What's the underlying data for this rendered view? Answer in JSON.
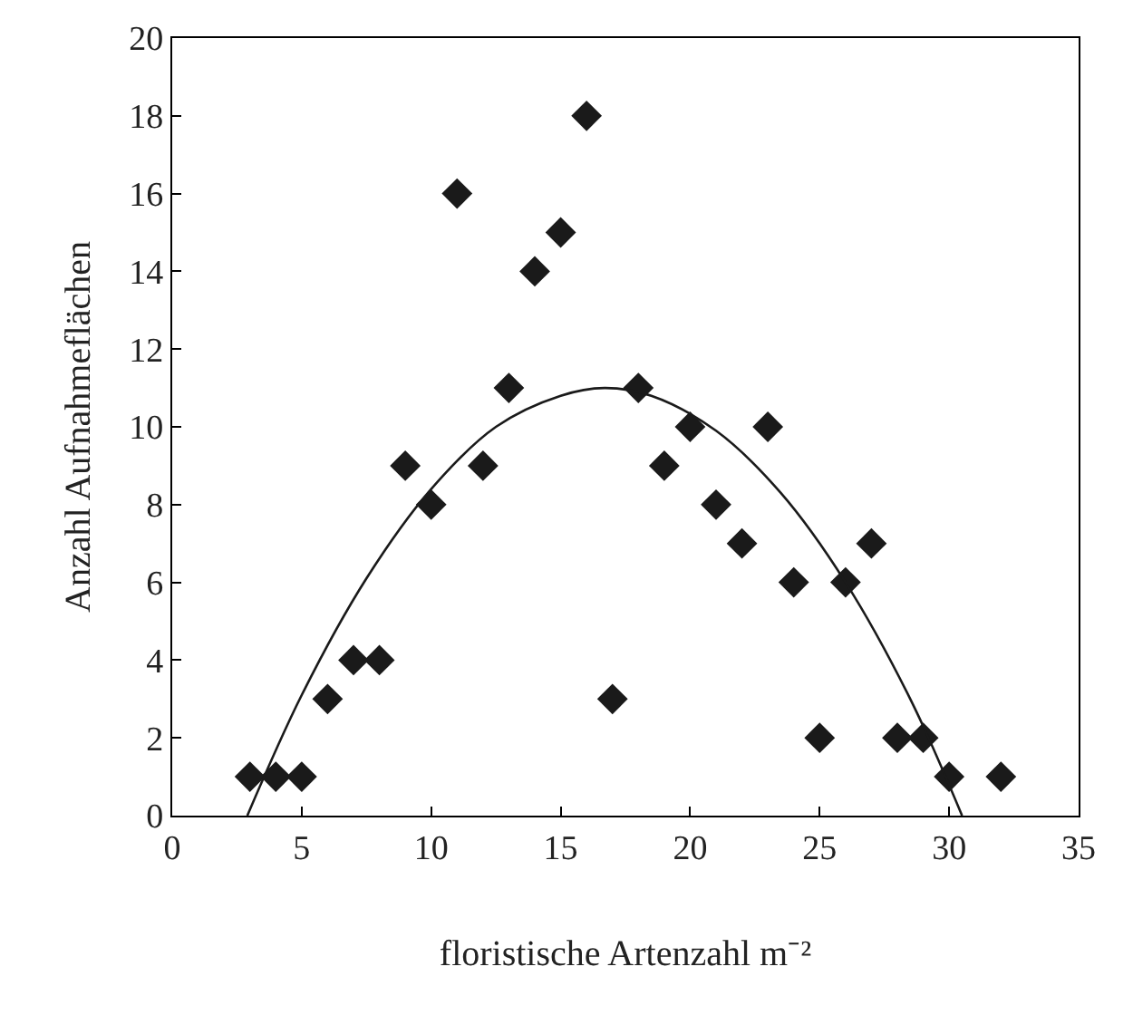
{
  "chart_data": {
    "type": "scatter",
    "xlabel": "floristische Artenzahl m⁻²",
    "ylabel": "Anzahl Aufnahmeflächen",
    "xlim": [
      0,
      35
    ],
    "xticks": [
      0,
      5,
      10,
      15,
      20,
      25,
      30,
      35
    ],
    "ylim": [
      0,
      20
    ],
    "yticks": [
      0,
      2,
      4,
      6,
      8,
      10,
      12,
      14,
      16,
      18,
      20
    ],
    "marker": "diamond",
    "series": [
      {
        "color": "#1a1a1a",
        "x": [
          3,
          4,
          5,
          6,
          7,
          8,
          9,
          10,
          11,
          12,
          13,
          14,
          15,
          16,
          17,
          18,
          19,
          20,
          21,
          22,
          23,
          24,
          25,
          26,
          27,
          28,
          29,
          30,
          32
        ],
        "values": [
          1,
          1,
          1,
          3,
          4,
          4,
          9,
          8,
          16,
          9,
          11,
          14,
          15,
          18,
          3,
          11,
          9,
          10,
          8,
          7,
          10,
          6,
          2,
          6,
          7,
          2,
          2,
          1,
          1
        ]
      },
      {
        "type": "line",
        "color": "#1a1a1a",
        "line_style": "solid",
        "marker": "none",
        "x": [
          2.9,
          5,
          7.5,
          10,
          12.5,
          15,
          16.7,
          18.5,
          21,
          23.5,
          26,
          28.5,
          30.5
        ],
        "values": [
          0,
          3.1,
          6.1,
          8.4,
          10,
          10.8,
          11,
          10.8,
          9.9,
          8.3,
          6,
          3,
          0
        ]
      }
    ]
  }
}
